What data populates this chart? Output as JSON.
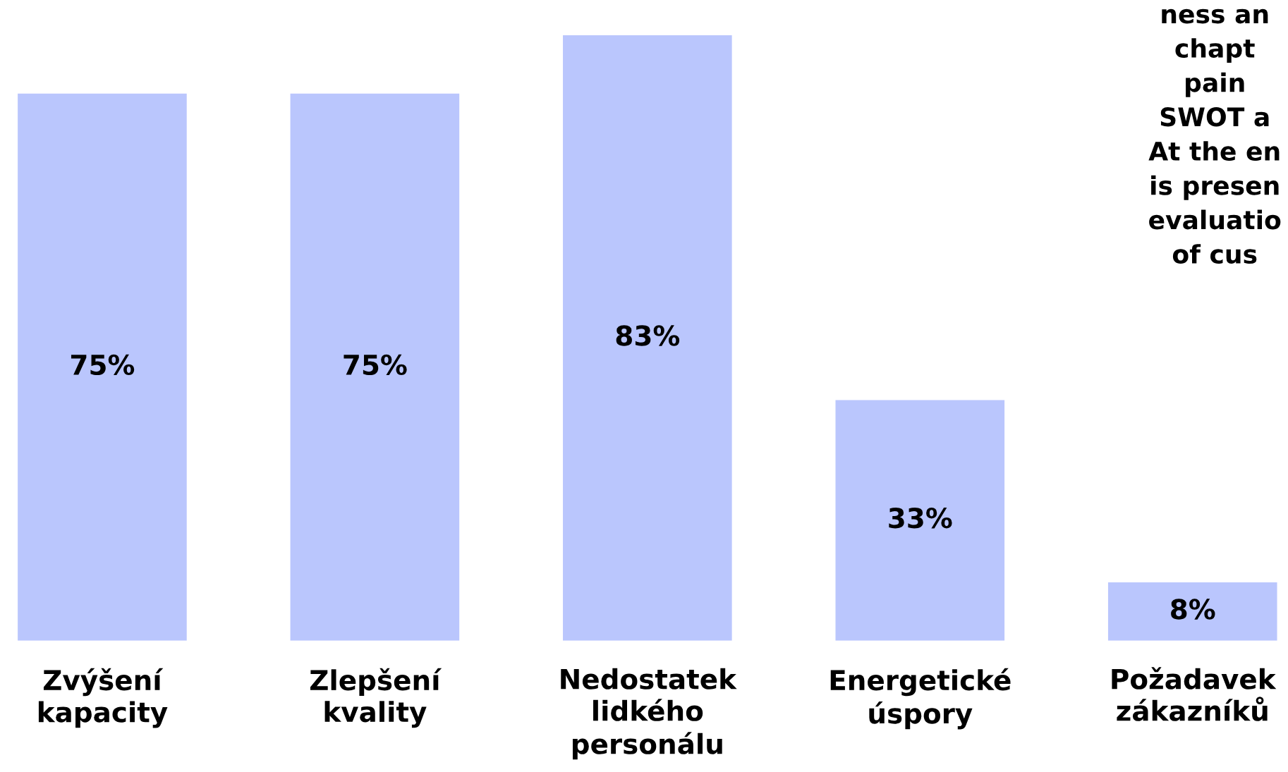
{
  "chart_data": {
    "type": "bar",
    "categories": [
      "Zvýšení\nkapacity",
      "Zlepšení\nkvality",
      "Nedostatek\nlidkého\npersonálu",
      "Energetické\núspory",
      "Požadavek\nzákazníků"
    ],
    "values": [
      75,
      75,
      83,
      33,
      8
    ],
    "value_labels": [
      "75%",
      "75%",
      "83%",
      "33%",
      "8%"
    ],
    "color": "#bac6fd",
    "grid": false,
    "legend": false,
    "annotations": [
      "ness an\nchapt\npain\nSWOT a\nAt the en\nis presen\nevaluatio\nof cus"
    ]
  }
}
